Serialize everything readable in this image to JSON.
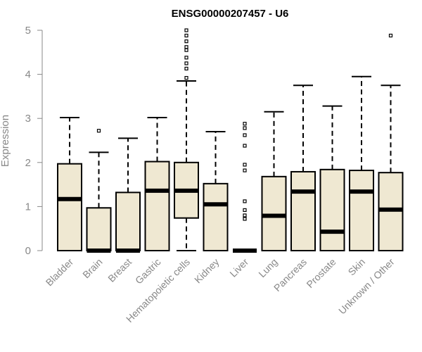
{
  "chart_data": {
    "type": "box",
    "title": "ENSG00000207457 - U6",
    "ylabel": "Expression",
    "xlabel": "",
    "ylim": [
      0,
      5
    ],
    "yticks": [
      0,
      1,
      2,
      3,
      4,
      5
    ],
    "grid": false,
    "legend": "none",
    "box_fill": "#efe8d2",
    "outline_color": "#000000",
    "axis_color": "#888888",
    "categories": [
      {
        "label": "Bladder",
        "whisker_low": 0,
        "q1": 0,
        "median": 1.17,
        "q3": 1.97,
        "whisker_high": 3.02,
        "outliers": []
      },
      {
        "label": "Brain",
        "whisker_low": 0,
        "q1": 0,
        "median": 0,
        "q3": 0.97,
        "whisker_high": 2.23,
        "outliers": [
          2.72
        ]
      },
      {
        "label": "Breast",
        "whisker_low": 0,
        "q1": 0,
        "median": 0,
        "q3": 1.32,
        "whisker_high": 2.55,
        "outliers": []
      },
      {
        "label": "Gastric",
        "whisker_low": 0,
        "q1": 0,
        "median": 1.36,
        "q3": 2.02,
        "whisker_high": 3.02,
        "outliers": []
      },
      {
        "label": "Hematopoietic cells",
        "whisker_low": 0,
        "q1": 0.74,
        "median": 1.36,
        "q3": 2.0,
        "whisker_high": 3.85,
        "outliers": [
          3.92,
          4.13,
          4.25,
          4.38,
          4.55,
          4.62,
          4.75,
          4.88,
          5.0
        ]
      },
      {
        "label": "Kidney",
        "whisker_low": 0,
        "q1": 0,
        "median": 1.05,
        "q3": 1.52,
        "whisker_high": 2.7,
        "outliers": []
      },
      {
        "label": "Liver",
        "whisker_low": 0,
        "q1": 0,
        "median": 0,
        "q3": 0,
        "whisker_high": 0,
        "outliers": [
          0.72,
          0.8,
          0.92,
          1.12,
          1.82,
          1.95,
          2.38,
          2.62,
          2.78,
          2.88
        ]
      },
      {
        "label": "Lung",
        "whisker_low": 0,
        "q1": 0,
        "median": 0.79,
        "q3": 1.68,
        "whisker_high": 3.15,
        "outliers": []
      },
      {
        "label": "Pancreas",
        "whisker_low": 0,
        "q1": 0,
        "median": 1.34,
        "q3": 1.79,
        "whisker_high": 3.75,
        "outliers": []
      },
      {
        "label": "Prostate",
        "whisker_low": 0,
        "q1": 0,
        "median": 0.43,
        "q3": 1.84,
        "whisker_high": 3.28,
        "outliers": []
      },
      {
        "label": "Skin",
        "whisker_low": 0,
        "q1": 0,
        "median": 1.34,
        "q3": 1.82,
        "whisker_high": 3.95,
        "outliers": []
      },
      {
        "label": "Unknown / Other",
        "whisker_low": 0,
        "q1": 0,
        "median": 0.93,
        "q3": 1.77,
        "whisker_high": 3.75,
        "outliers": [
          4.88
        ]
      }
    ]
  }
}
